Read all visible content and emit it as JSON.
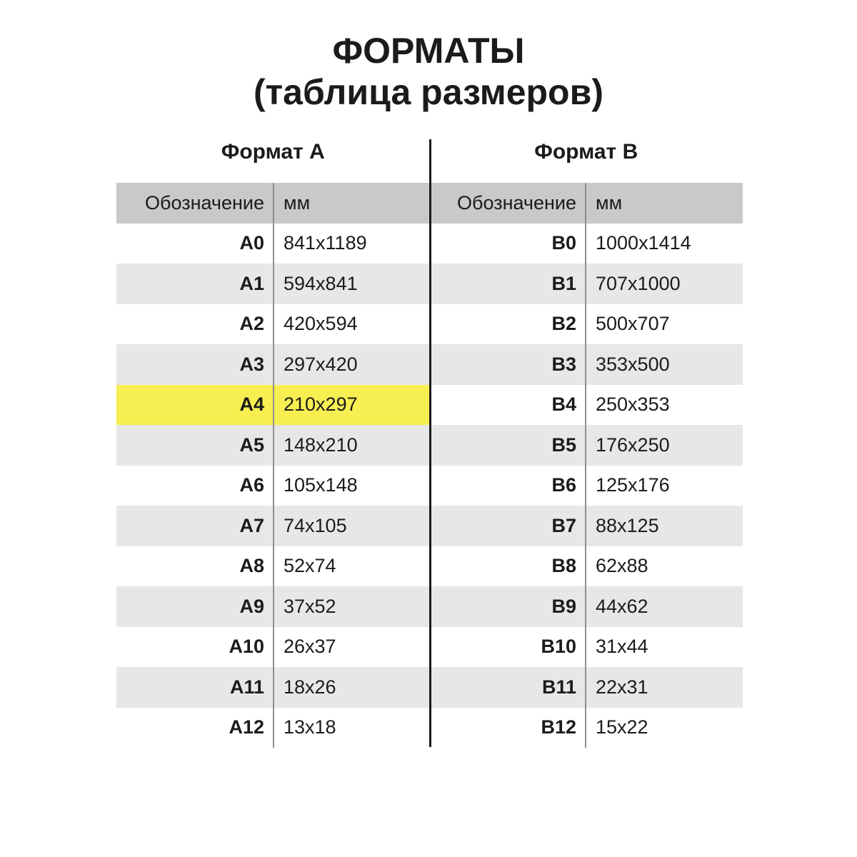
{
  "page": {
    "title": "ФОРМАТЫ",
    "subtitle": "(таблица размеров)"
  },
  "colors": {
    "header_row_bg": "#c9c9c9",
    "alt_row_bg": "#e7e7e7",
    "highlight_bg": "#f7ee51",
    "text_color": "#1b1b1b",
    "center_divider": "#1a1a1a",
    "column_divider": "#8f8f8f"
  },
  "chart_data": {
    "type": "table",
    "title": "ФОРМАТЫ",
    "subtitle": "(таблица размеров)",
    "tables": [
      {
        "name": "Формат A",
        "columns": [
          "Обозначение",
          "мм"
        ],
        "rows": [
          [
            "A0",
            "841x1189"
          ],
          [
            "A1",
            "594x841"
          ],
          [
            "A2",
            "420x594"
          ],
          [
            "A3",
            "297x420"
          ],
          [
            "A4",
            "210x297"
          ],
          [
            "A5",
            "148x210"
          ],
          [
            "A6",
            "105x148"
          ],
          [
            "A7",
            "74x105"
          ],
          [
            "A8",
            "52x74"
          ],
          [
            "A9",
            "37x52"
          ],
          [
            "A10",
            "26x37"
          ],
          [
            "A11",
            "18x26"
          ],
          [
            "A12",
            "13x18"
          ]
        ]
      },
      {
        "name": "Формат B",
        "columns": [
          "Обозначение",
          "мм"
        ],
        "rows": [
          [
            "B0",
            "1000x1414"
          ],
          [
            "B1",
            "707x1000"
          ],
          [
            "B2",
            "500x707"
          ],
          [
            "B3",
            "353x500"
          ],
          [
            "B4",
            "250x353"
          ],
          [
            "B5",
            "176x250"
          ],
          [
            "B6",
            "125x176"
          ],
          [
            "B7",
            "88x125"
          ],
          [
            "B8",
            "62x88"
          ],
          [
            "B9",
            "44x62"
          ],
          [
            "B10",
            "31x44"
          ],
          [
            "B11",
            "22x31"
          ],
          [
            "B12",
            "15x22"
          ]
        ]
      }
    ],
    "highlighted_row": "A4",
    "highlight_color": "#f7ee51",
    "layout": {
      "shading": "alternating rows gray, header row darker gray",
      "highlight_scope": "left table half only"
    }
  }
}
